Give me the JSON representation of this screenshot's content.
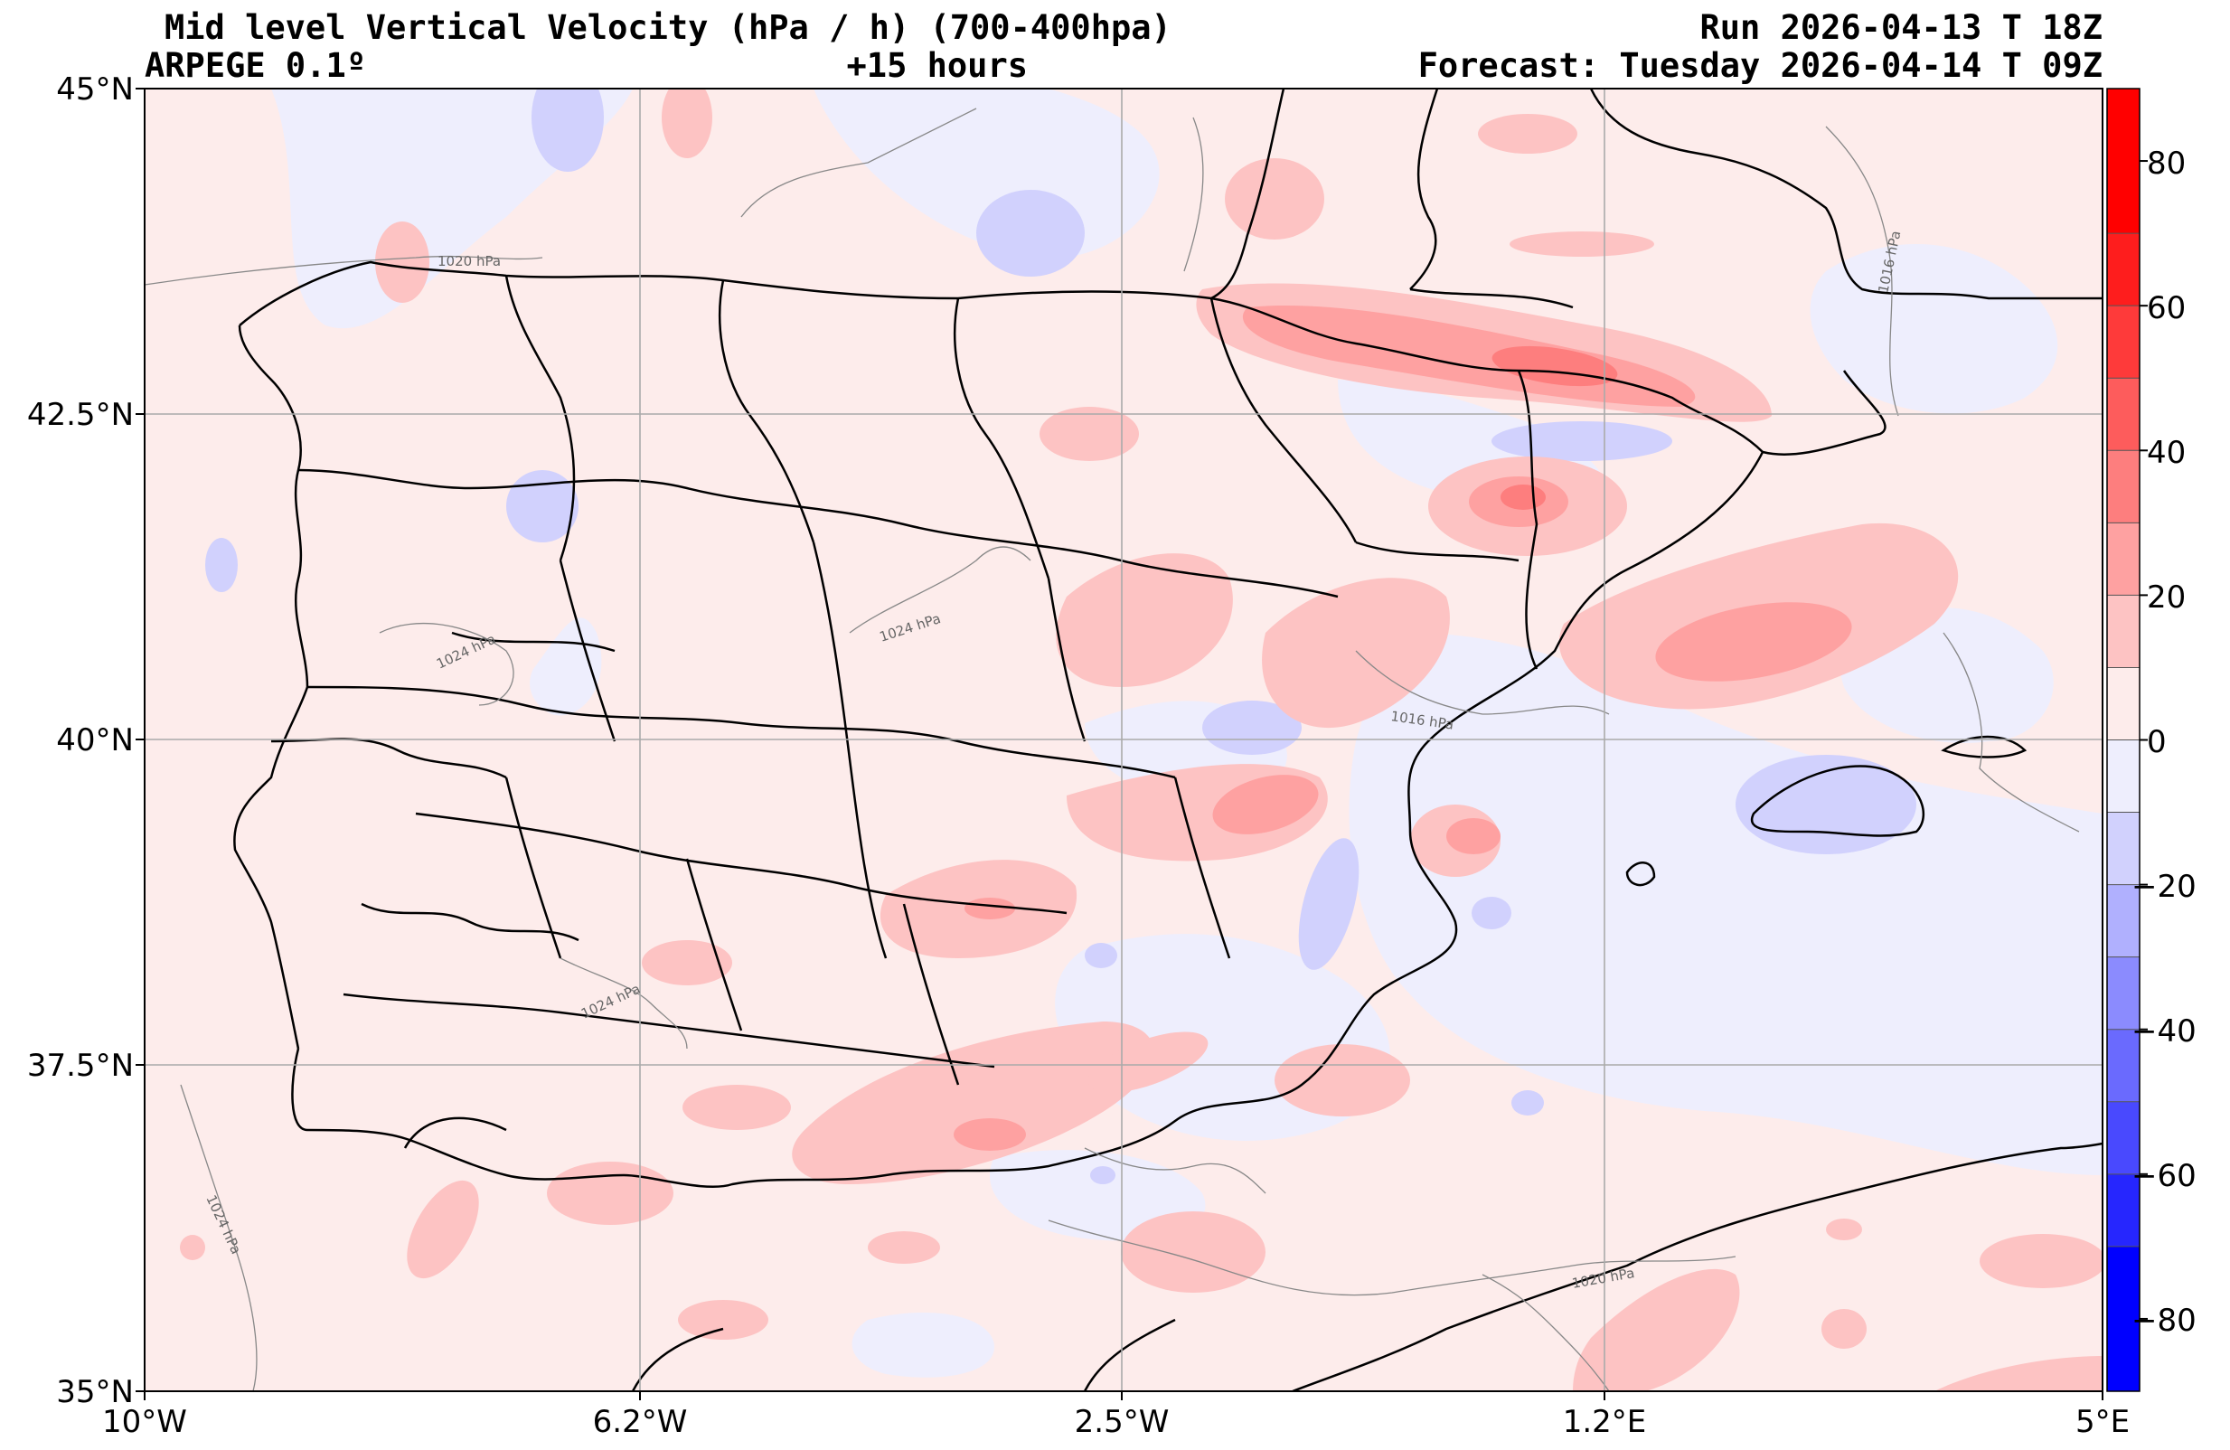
{
  "header": {
    "title": "Mid level Vertical Velocity (hPa / h)  (700-400hpa)",
    "model": "ARPEGE 0.1º",
    "lead": "+15 hours",
    "run": "Run 2026-04-13 T 18Z",
    "valid": "Forecast: Tuesday 2026-04-14 T 09Z"
  },
  "axes": {
    "lat_labels": [
      "45°N",
      "42.5°N",
      "40°N",
      "37.5°N",
      "35°N"
    ],
    "lon_labels": [
      "10°W",
      "6.2°W",
      "2.5°W",
      "1.2°E",
      "5°E"
    ],
    "lat_range": [
      35,
      45
    ],
    "lon_range": [
      -10,
      5
    ],
    "grid": true
  },
  "colorbar": {
    "ticks": [
      "80",
      "60",
      "40",
      "20",
      "0",
      "−20",
      "−40",
      "−60",
      "−80"
    ],
    "range": [
      -90,
      90
    ],
    "colors_positive": [
      "#fdeceb",
      "#fdc3c3",
      "#fea1a1",
      "#fd7e7e",
      "#fd5c5c",
      "#fe3a3a",
      "#fe1d1d",
      "#ff0000"
    ],
    "colors_negative": [
      "#eeeefd",
      "#d1d1fd",
      "#b0b0fe",
      "#8b8bfe",
      "#6a6afe",
      "#4949fe",
      "#2626fe",
      "#0000ff"
    ]
  },
  "isobar_labels": [
    "1020 hPa",
    "1016 hPa",
    "1024 hPa",
    "1024 hPa",
    "1016 hPa",
    "1024 hPa",
    "1024 hPa",
    "1020 hPa"
  ]
}
